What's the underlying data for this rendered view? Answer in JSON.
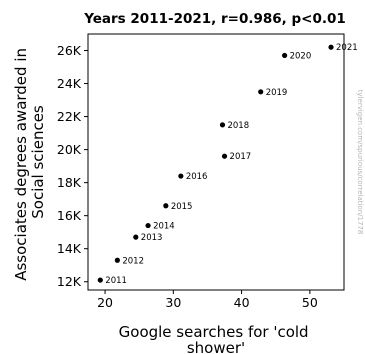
{
  "chart_data": {
    "type": "scatter",
    "title": "Years 2011-2021, r=0.986, p<0.01",
    "xlabel": [
      "Google searches for 'cold",
      "shower'"
    ],
    "ylabel": [
      "Associates degrees awarded in",
      "Social sciences"
    ],
    "xlim": [
      17.5,
      55
    ],
    "ylim": [
      11500,
      27000
    ],
    "xticks": [
      20,
      30,
      40,
      50
    ],
    "xtick_labels": [
      "20",
      "30",
      "40",
      "50"
    ],
    "yticks": [
      12000,
      14000,
      16000,
      18000,
      20000,
      22000,
      24000,
      26000
    ],
    "ytick_labels": [
      "12K",
      "14K",
      "16K",
      "18K",
      "20K",
      "22K",
      "24K",
      "26K"
    ],
    "grid": false,
    "points": [
      {
        "label": "2011",
        "x": 19.3,
        "y": 12100
      },
      {
        "label": "2012",
        "x": 21.8,
        "y": 13300
      },
      {
        "label": "2013",
        "x": 24.5,
        "y": 14700
      },
      {
        "label": "2014",
        "x": 26.3,
        "y": 15400
      },
      {
        "label": "2015",
        "x": 28.9,
        "y": 16600
      },
      {
        "label": "2016",
        "x": 31.1,
        "y": 18400
      },
      {
        "label": "2017",
        "x": 37.5,
        "y": 19600
      },
      {
        "label": "2018",
        "x": 37.2,
        "y": 21500
      },
      {
        "label": "2019",
        "x": 42.8,
        "y": 23500
      },
      {
        "label": "2020",
        "x": 46.3,
        "y": 25700
      },
      {
        "label": "2021",
        "x": 53.1,
        "y": 26200
      }
    ],
    "colors": {
      "marker": "#000000",
      "axes": "#000000"
    }
  },
  "credit": "tylervigen.com/spurious/correlation/1778"
}
